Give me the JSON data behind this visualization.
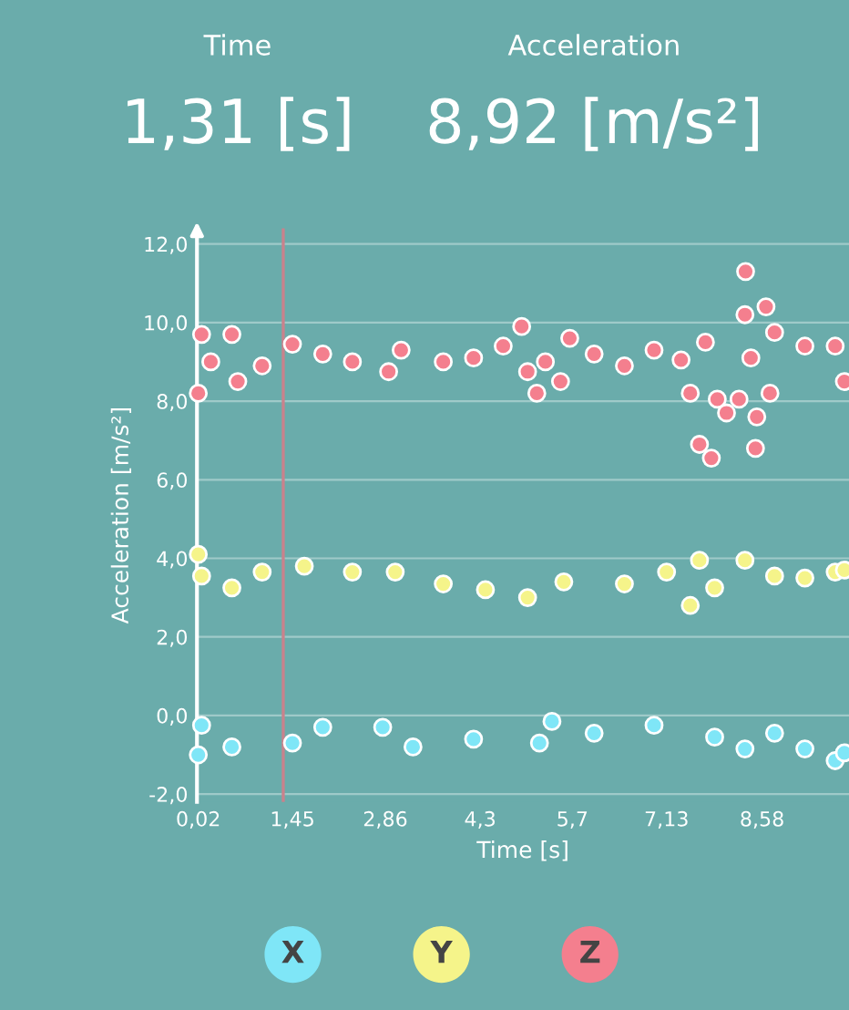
{
  "chart_data": {
    "type": "scatter",
    "annotations": [
      "Time",
      "1,31 [s]",
      "Acceleration",
      "8,92 [m/s²]"
    ],
    "xlabel": "Time [s]",
    "ylabel": "Acceleration [m/s²]",
    "xlim": [
      0.0,
      9.9
    ],
    "ylim": [
      -2.2,
      12.4
    ],
    "xticks": [
      {
        "value": 0.02,
        "label": "0,02"
      },
      {
        "value": 1.45,
        "label": "1,45"
      },
      {
        "value": 2.86,
        "label": "2,86"
      },
      {
        "value": 4.3,
        "label": "4,3"
      },
      {
        "value": 5.7,
        "label": "5,7"
      },
      {
        "value": 7.13,
        "label": "7,13"
      },
      {
        "value": 8.58,
        "label": "8,58"
      }
    ],
    "yticks": [
      {
        "value": -2,
        "label": "-2,0"
      },
      {
        "value": 0,
        "label": "0,0"
      },
      {
        "value": 2,
        "label": "2,0"
      },
      {
        "value": 4,
        "label": "4,0"
      },
      {
        "value": 6,
        "label": "6,0"
      },
      {
        "value": 8,
        "label": "8,0"
      },
      {
        "value": 10,
        "label": "10,0"
      },
      {
        "value": 12,
        "label": "12,0"
      }
    ],
    "grid": "y",
    "legend": "bottom",
    "marker": "circle",
    "ref_lines": [
      {
        "axis": "x",
        "value": 1.31,
        "color": "#c9828c"
      }
    ],
    "series": [
      {
        "name": "X",
        "color": "#7fe6f7",
        "x": [
          0.02,
          0.07,
          0.53,
          1.45,
          1.91,
          2.82,
          3.28,
          4.2,
          5.2,
          5.39,
          6.03,
          6.94,
          7.86,
          8.32,
          8.77,
          9.23,
          9.69,
          9.83
        ],
        "values": [
          -1.0,
          -0.25,
          -0.8,
          -0.7,
          -0.3,
          -0.3,
          -0.8,
          -0.6,
          -0.7,
          -0.15,
          -0.45,
          -0.25,
          -0.55,
          -0.85,
          -0.45,
          -0.85,
          -1.15,
          -0.95
        ]
      },
      {
        "name": "Y",
        "color": "#f5f48a",
        "x": [
          0.02,
          0.07,
          0.53,
          0.99,
          1.63,
          2.36,
          3.01,
          3.74,
          4.38,
          5.02,
          5.57,
          6.49,
          7.13,
          7.49,
          7.63,
          7.86,
          8.32,
          8.77,
          9.23,
          9.69,
          9.83
        ],
        "values": [
          4.1,
          3.55,
          3.25,
          3.65,
          3.8,
          3.65,
          3.65,
          3.35,
          3.2,
          3.0,
          3.4,
          3.35,
          3.65,
          2.8,
          3.95,
          3.25,
          3.95,
          3.55,
          3.5,
          3.65,
          3.7
        ]
      },
      {
        "name": "Z",
        "color": "#f47f8e",
        "x": [
          0.02,
          0.07,
          0.21,
          0.53,
          0.62,
          0.99,
          1.45,
          1.91,
          2.36,
          2.91,
          3.1,
          3.74,
          4.2,
          4.65,
          4.93,
          5.02,
          5.16,
          5.29,
          5.52,
          5.66,
          6.03,
          6.49,
          6.94,
          7.35,
          7.49,
          7.63,
          7.72,
          7.81,
          7.9,
          8.04,
          8.23,
          8.32,
          8.33,
          8.41,
          8.48,
          8.5,
          8.64,
          8.7,
          8.77,
          9.23,
          9.69,
          9.83
        ],
        "values": [
          8.2,
          9.7,
          9.0,
          9.7,
          8.5,
          8.9,
          9.45,
          9.2,
          9.0,
          8.75,
          9.3,
          9.0,
          9.1,
          9.4,
          9.9,
          8.75,
          8.2,
          9.0,
          8.5,
          9.6,
          9.2,
          8.9,
          9.3,
          9.05,
          8.2,
          6.9,
          9.5,
          6.55,
          8.05,
          7.7,
          8.05,
          10.2,
          11.3,
          9.1,
          6.8,
          7.6,
          10.4,
          8.2,
          9.75,
          9.4,
          9.4,
          8.5
        ]
      }
    ]
  }
}
